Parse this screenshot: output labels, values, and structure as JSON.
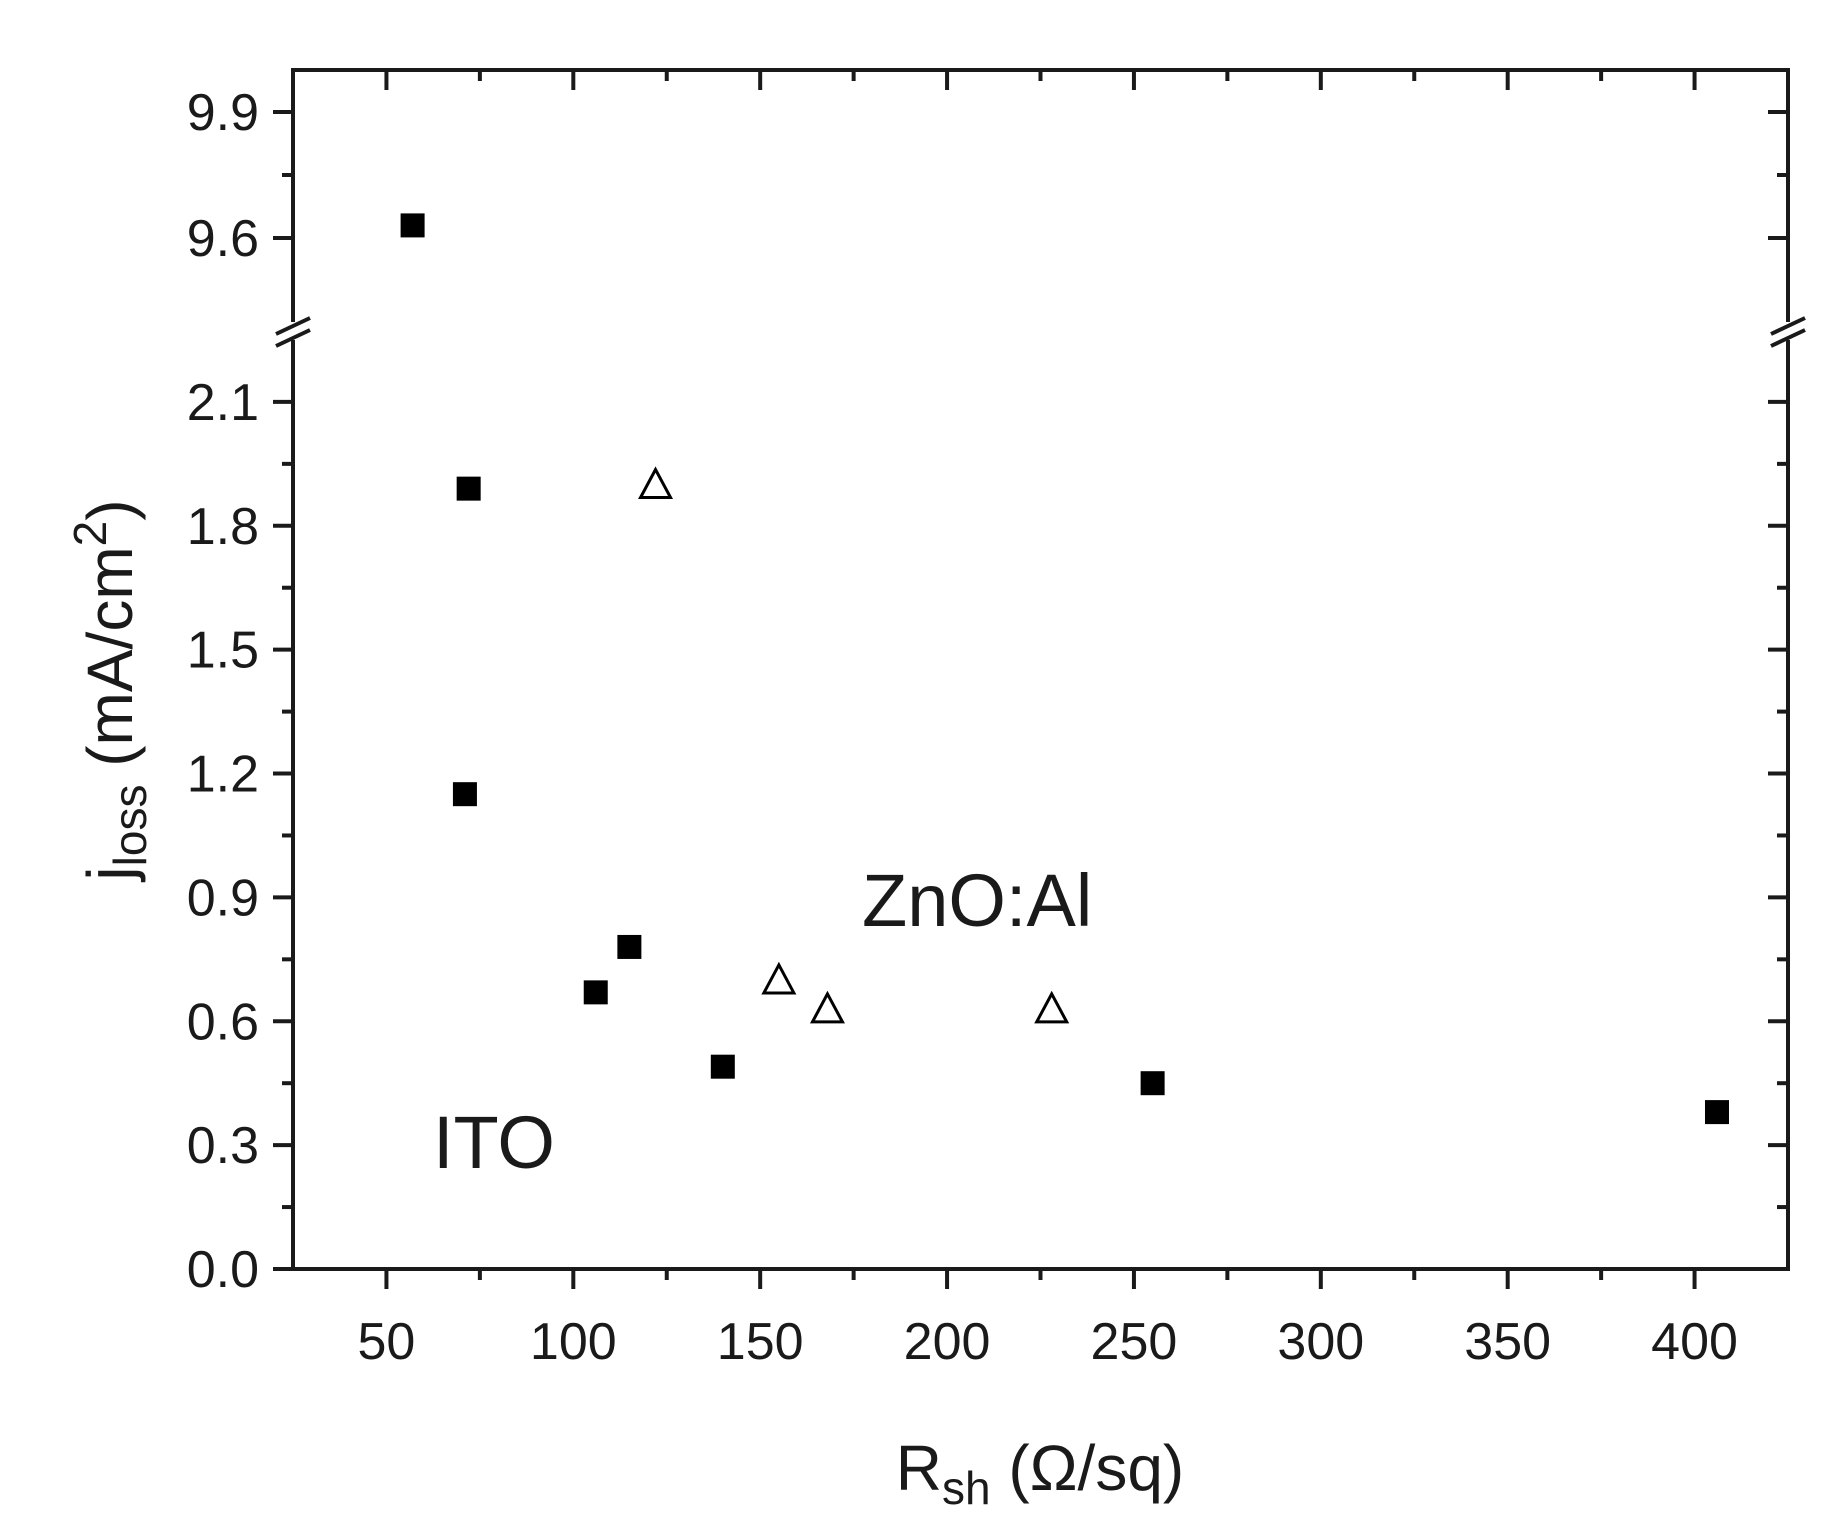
{
  "chart_data": {
    "type": "scatter",
    "xlabel": {
      "main": "R",
      "sub": "sh",
      "unit": " (Ω/sq)"
    },
    "ylabel": {
      "main": "j",
      "sub": "loss",
      "unit": " (mA/cm",
      "sup": "2",
      "close": ")"
    },
    "xlim": [
      25,
      425
    ],
    "x_ticks": [
      50,
      100,
      150,
      200,
      250,
      300,
      350,
      400
    ],
    "y_axis_break": {
      "lower_range": [
        0,
        2.25
      ],
      "upper_range": [
        9.4,
        10.0
      ]
    },
    "y_ticks_lower": [
      0.0,
      0.3,
      0.6,
      0.9,
      1.2,
      1.5,
      1.8,
      2.1
    ],
    "y_ticks_upper": [
      9.6,
      9.9
    ],
    "grid": false,
    "series": [
      {
        "name": "ITO",
        "marker": "filled-square",
        "color": "#000000",
        "points": [
          {
            "x": 57,
            "y": 9.63
          },
          {
            "x": 72,
            "y": 1.89
          },
          {
            "x": 71,
            "y": 1.15
          },
          {
            "x": 106,
            "y": 0.67
          },
          {
            "x": 115,
            "y": 0.78
          },
          {
            "x": 140,
            "y": 0.49
          },
          {
            "x": 255,
            "y": 0.45
          },
          {
            "x": 406,
            "y": 0.38
          }
        ]
      },
      {
        "name": "ZnO:Al",
        "marker": "open-triangle",
        "color": "#000000",
        "points": [
          {
            "x": 122,
            "y": 1.9
          },
          {
            "x": 155,
            "y": 0.7
          },
          {
            "x": 168,
            "y": 0.63
          },
          {
            "x": 228,
            "y": 0.63
          }
        ]
      }
    ]
  }
}
